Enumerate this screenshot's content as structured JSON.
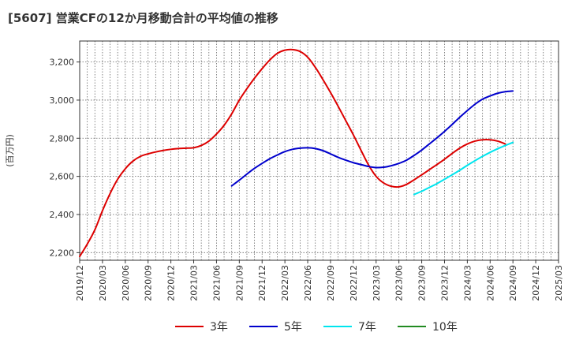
{
  "title": "[5607]  営業CFの12か月移動合計の平均値の推移",
  "colors": {
    "3y": "#dd0000",
    "5y": "#0000cc",
    "7y": "#00e5ee",
    "10y": "#228b22",
    "grid": "#666666",
    "axis": "#333333"
  },
  "chart_data": {
    "type": "line",
    "ylabel": "(百万円)",
    "ylim": [
      2160,
      3310
    ],
    "yticks": [
      2200,
      2400,
      2600,
      2800,
      3000,
      3200
    ],
    "ytick_labels": [
      "2,200",
      "2,400",
      "2,600",
      "2,800",
      "3,000",
      "3,200"
    ],
    "xlim": [
      "2019-12",
      "2025-03"
    ],
    "xticks": [
      "2019/12",
      "2020/03",
      "2020/06",
      "2020/09",
      "2020/12",
      "2021/03",
      "2021/06",
      "2021/09",
      "2021/12",
      "2022/03",
      "2022/06",
      "2022/09",
      "2022/12",
      "2023/03",
      "2023/06",
      "2023/09",
      "2023/12",
      "2024/03",
      "2024/06",
      "2024/09",
      "2024/12",
      "2025/03"
    ],
    "grid": true,
    "legend_position": "bottom",
    "series": [
      {
        "name": "3年",
        "color_key": "3y",
        "points": [
          [
            "2019-12",
            2180
          ],
          [
            "2020-01",
            2245
          ],
          [
            "2020-02",
            2320
          ],
          [
            "2020-03",
            2420
          ],
          [
            "2020-04",
            2510
          ],
          [
            "2020-05",
            2585
          ],
          [
            "2020-06",
            2640
          ],
          [
            "2020-07",
            2680
          ],
          [
            "2020-08",
            2705
          ],
          [
            "2020-09",
            2718
          ],
          [
            "2020-10",
            2728
          ],
          [
            "2020-11",
            2736
          ],
          [
            "2020-12",
            2742
          ],
          [
            "2021-01",
            2746
          ],
          [
            "2021-02",
            2748
          ],
          [
            "2021-03",
            2750
          ],
          [
            "2021-04",
            2762
          ],
          [
            "2021-05",
            2785
          ],
          [
            "2021-06",
            2822
          ],
          [
            "2021-07",
            2868
          ],
          [
            "2021-08",
            2928
          ],
          [
            "2021-09",
            3000
          ],
          [
            "2021-10",
            3060
          ],
          [
            "2021-11",
            3115
          ],
          [
            "2021-12",
            3165
          ],
          [
            "2022-01",
            3210
          ],
          [
            "2022-02",
            3245
          ],
          [
            "2022-03",
            3262
          ],
          [
            "2022-04",
            3265
          ],
          [
            "2022-05",
            3255
          ],
          [
            "2022-06",
            3225
          ],
          [
            "2022-07",
            3172
          ],
          [
            "2022-08",
            3108
          ],
          [
            "2022-09",
            3040
          ],
          [
            "2022-10",
            2968
          ],
          [
            "2022-11",
            2893
          ],
          [
            "2022-12",
            2818
          ],
          [
            "2023-01",
            2738
          ],
          [
            "2023-02",
            2660
          ],
          [
            "2023-03",
            2600
          ],
          [
            "2023-04",
            2565
          ],
          [
            "2023-05",
            2548
          ],
          [
            "2023-06",
            2545
          ],
          [
            "2023-07",
            2558
          ],
          [
            "2023-08",
            2582
          ],
          [
            "2023-09",
            2608
          ],
          [
            "2023-10",
            2635
          ],
          [
            "2023-11",
            2662
          ],
          [
            "2023-12",
            2690
          ],
          [
            "2024-01",
            2720
          ],
          [
            "2024-02",
            2748
          ],
          [
            "2024-03",
            2770
          ],
          [
            "2024-04",
            2785
          ],
          [
            "2024-05",
            2792
          ],
          [
            "2024-06",
            2792
          ],
          [
            "2024-07",
            2785
          ],
          [
            "2024-08",
            2770
          ]
        ]
      },
      {
        "name": "5年",
        "color_key": "5y",
        "points": [
          [
            "2021-08",
            2550
          ],
          [
            "2021-09",
            2580
          ],
          [
            "2021-10",
            2612
          ],
          [
            "2021-11",
            2642
          ],
          [
            "2021-12",
            2668
          ],
          [
            "2022-01",
            2692
          ],
          [
            "2022-02",
            2712
          ],
          [
            "2022-03",
            2730
          ],
          [
            "2022-04",
            2742
          ],
          [
            "2022-05",
            2748
          ],
          [
            "2022-06",
            2750
          ],
          [
            "2022-07",
            2746
          ],
          [
            "2022-08",
            2735
          ],
          [
            "2022-09",
            2718
          ],
          [
            "2022-10",
            2700
          ],
          [
            "2022-11",
            2685
          ],
          [
            "2022-12",
            2672
          ],
          [
            "2023-01",
            2662
          ],
          [
            "2023-02",
            2652
          ],
          [
            "2023-03",
            2646
          ],
          [
            "2023-04",
            2648
          ],
          [
            "2023-05",
            2656
          ],
          [
            "2023-06",
            2668
          ],
          [
            "2023-07",
            2685
          ],
          [
            "2023-08",
            2710
          ],
          [
            "2023-09",
            2738
          ],
          [
            "2023-10",
            2770
          ],
          [
            "2023-11",
            2802
          ],
          [
            "2023-12",
            2836
          ],
          [
            "2024-01",
            2872
          ],
          [
            "2024-02",
            2910
          ],
          [
            "2024-03",
            2945
          ],
          [
            "2024-04",
            2978
          ],
          [
            "2024-05",
            3005
          ],
          [
            "2024-06",
            3022
          ],
          [
            "2024-07",
            3036
          ],
          [
            "2024-08",
            3044
          ],
          [
            "2024-09",
            3048
          ]
        ]
      },
      {
        "name": "7年",
        "color_key": "7y",
        "points": [
          [
            "2023-08",
            2505
          ],
          [
            "2023-09",
            2522
          ],
          [
            "2023-10",
            2542
          ],
          [
            "2023-11",
            2562
          ],
          [
            "2023-12",
            2585
          ],
          [
            "2024-01",
            2608
          ],
          [
            "2024-02",
            2632
          ],
          [
            "2024-03",
            2658
          ],
          [
            "2024-04",
            2682
          ],
          [
            "2024-05",
            2705
          ],
          [
            "2024-06",
            2726
          ],
          [
            "2024-07",
            2745
          ],
          [
            "2024-08",
            2762
          ],
          [
            "2024-09",
            2778
          ]
        ]
      },
      {
        "name": "10年",
        "color_key": "10y",
        "points": []
      }
    ]
  }
}
